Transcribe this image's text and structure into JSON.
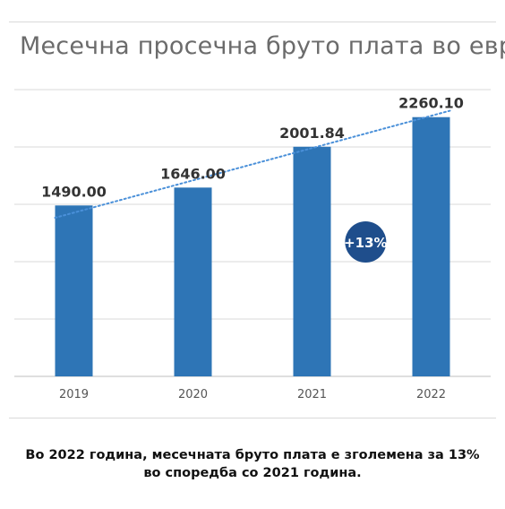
{
  "chart_data": {
    "type": "bar",
    "title": "Месечна просечна бруто плата во евра",
    "categories": [
      "2019",
      "2020",
      "2021",
      "2022"
    ],
    "values": [
      1490.0,
      1646.0,
      2001.84,
      2260.1
    ],
    "value_labels": [
      "1490.00",
      "1646.00",
      "2001.84",
      "2260.10"
    ],
    "ylim": [
      0,
      2500
    ],
    "grid": true,
    "trendline": "linear, dotted",
    "bar_color": "#2e75b6",
    "trendline_color": "#4a90d9",
    "annotation": {
      "text": "+13%",
      "color": "#1f4e8c"
    }
  },
  "caption": {
    "line1": "Во 2022 година, месечната бруто плата е зголемена за 13%",
    "line2": "во споредба со 2021 година."
  }
}
